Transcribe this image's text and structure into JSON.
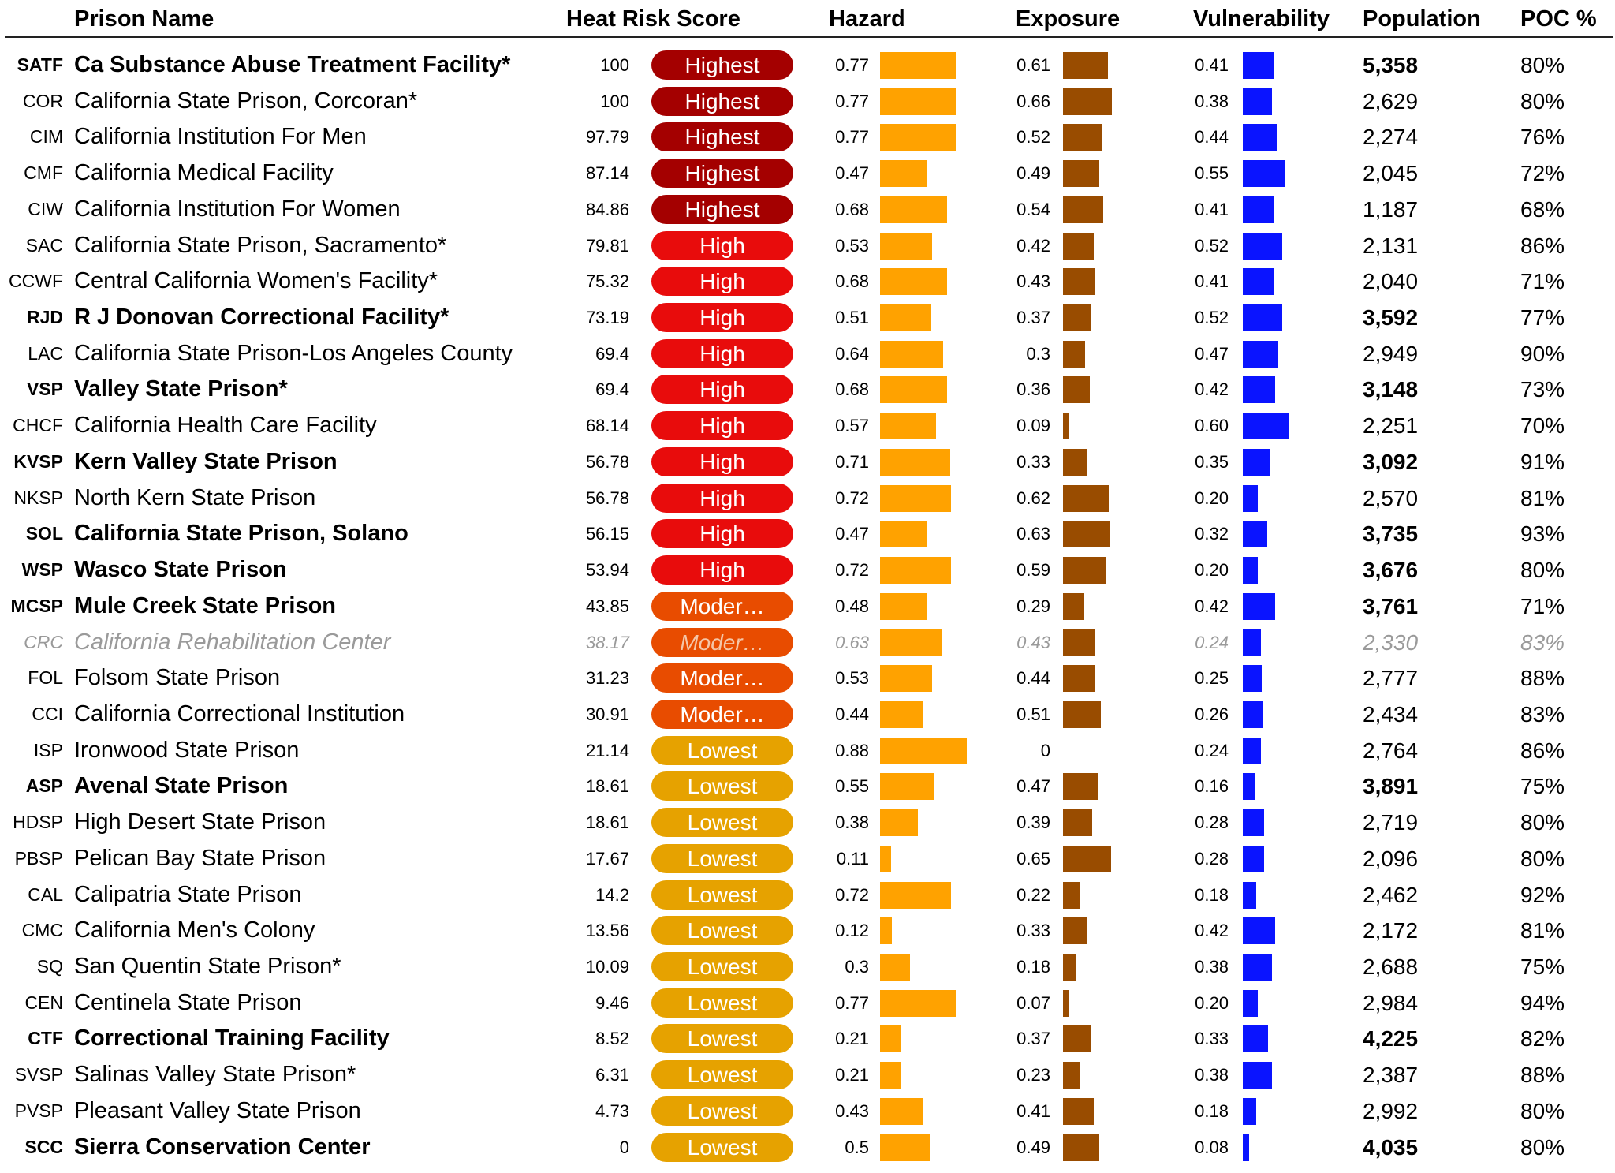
{
  "headers": {
    "name": "Prison Name",
    "score": "Heat Risk Score",
    "hazard": "Hazard",
    "exposure": "Exposure",
    "vulnerability": "Vulnerability",
    "population": "Population",
    "poc": "POC %"
  },
  "colors": {
    "highest": "#a40000",
    "high": "#e80c0c",
    "moderate": "#e84c00",
    "lowest": "#e6a200",
    "hazard_bar": "#ffa200",
    "exposure_bar": "#994c00",
    "vulnerability_bar": "#0a14ff"
  },
  "chart_data": {
    "type": "table",
    "columns": [
      "Prison Name",
      "Heat Risk Score",
      "Hazard",
      "Exposure",
      "Vulnerability",
      "Population",
      "POC %"
    ],
    "rows": [
      {
        "code": "SATF",
        "name": "Ca Substance Abuse Treatment Facility*",
        "score": "100",
        "category": "Highest",
        "level": "highest",
        "hazard": 0.77,
        "hazard_label": "0.77",
        "exposure": 0.61,
        "exposure_label": "0.61",
        "vulnerability": 0.41,
        "vulnerability_label": "0.41",
        "population": "5,358",
        "poc": "80%",
        "bold": true,
        "faded": false
      },
      {
        "code": "COR",
        "name": "California State Prison, Corcoran*",
        "score": "100",
        "category": "Highest",
        "level": "highest",
        "hazard": 0.77,
        "hazard_label": "0.77",
        "exposure": 0.66,
        "exposure_label": "0.66",
        "vulnerability": 0.38,
        "vulnerability_label": "0.38",
        "population": "2,629",
        "poc": "80%",
        "bold": false,
        "faded": false
      },
      {
        "code": "CIM",
        "name": "California Institution For Men",
        "score": "97.79",
        "category": "Highest",
        "level": "highest",
        "hazard": 0.77,
        "hazard_label": "0.77",
        "exposure": 0.52,
        "exposure_label": "0.52",
        "vulnerability": 0.44,
        "vulnerability_label": "0.44",
        "population": "2,274",
        "poc": "76%",
        "bold": false,
        "faded": false
      },
      {
        "code": "CMF",
        "name": "California Medical Facility",
        "score": "87.14",
        "category": "Highest",
        "level": "highest",
        "hazard": 0.47,
        "hazard_label": "0.47",
        "exposure": 0.49,
        "exposure_label": "0.49",
        "vulnerability": 0.55,
        "vulnerability_label": "0.55",
        "population": "2,045",
        "poc": "72%",
        "bold": false,
        "faded": false
      },
      {
        "code": "CIW",
        "name": "California Institution For Women",
        "score": "84.86",
        "category": "Highest",
        "level": "highest",
        "hazard": 0.68,
        "hazard_label": "0.68",
        "exposure": 0.54,
        "exposure_label": "0.54",
        "vulnerability": 0.41,
        "vulnerability_label": "0.41",
        "population": "1,187",
        "poc": "68%",
        "bold": false,
        "faded": false
      },
      {
        "code": "SAC",
        "name": "California State Prison, Sacramento*",
        "score": "79.81",
        "category": "High",
        "level": "high",
        "hazard": 0.53,
        "hazard_label": "0.53",
        "exposure": 0.42,
        "exposure_label": "0.42",
        "vulnerability": 0.52,
        "vulnerability_label": "0.52",
        "population": "2,131",
        "poc": "86%",
        "bold": false,
        "faded": false
      },
      {
        "code": "CCWF",
        "name": "Central California Women's Facility*",
        "score": "75.32",
        "category": "High",
        "level": "high",
        "hazard": 0.68,
        "hazard_label": "0.68",
        "exposure": 0.43,
        "exposure_label": "0.43",
        "vulnerability": 0.41,
        "vulnerability_label": "0.41",
        "population": "2,040",
        "poc": "71%",
        "bold": false,
        "faded": false
      },
      {
        "code": "RJD",
        "name": "R J Donovan Correctional Facility*",
        "score": "73.19",
        "category": "High",
        "level": "high",
        "hazard": 0.51,
        "hazard_label": "0.51",
        "exposure": 0.37,
        "exposure_label": "0.37",
        "vulnerability": 0.52,
        "vulnerability_label": "0.52",
        "population": "3,592",
        "poc": "77%",
        "bold": true,
        "faded": false
      },
      {
        "code": "LAC",
        "name": "California State Prison-Los Angeles County",
        "score": "69.4",
        "category": "High",
        "level": "high",
        "hazard": 0.64,
        "hazard_label": "0.64",
        "exposure": 0.3,
        "exposure_label": "0.3",
        "vulnerability": 0.47,
        "vulnerability_label": "0.47",
        "population": "2,949",
        "poc": "90%",
        "bold": false,
        "faded": false
      },
      {
        "code": "VSP",
        "name": "Valley State Prison*",
        "score": "69.4",
        "category": "High",
        "level": "high",
        "hazard": 0.68,
        "hazard_label": "0.68",
        "exposure": 0.36,
        "exposure_label": "0.36",
        "vulnerability": 0.42,
        "vulnerability_label": "0.42",
        "population": "3,148",
        "poc": "73%",
        "bold": true,
        "faded": false
      },
      {
        "code": "CHCF",
        "name": "California Health Care Facility",
        "score": "68.14",
        "category": "High",
        "level": "high",
        "hazard": 0.57,
        "hazard_label": "0.57",
        "exposure": 0.09,
        "exposure_label": "0.09",
        "vulnerability": 0.6,
        "vulnerability_label": "0.60",
        "population": "2,251",
        "poc": "70%",
        "bold": false,
        "faded": false
      },
      {
        "code": "KVSP",
        "name": "Kern Valley State Prison",
        "score": "56.78",
        "category": "High",
        "level": "high",
        "hazard": 0.71,
        "hazard_label": "0.71",
        "exposure": 0.33,
        "exposure_label": "0.33",
        "vulnerability": 0.35,
        "vulnerability_label": "0.35",
        "population": "3,092",
        "poc": "91%",
        "bold": true,
        "faded": false
      },
      {
        "code": "NKSP",
        "name": "North Kern State Prison",
        "score": "56.78",
        "category": "High",
        "level": "high",
        "hazard": 0.72,
        "hazard_label": "0.72",
        "exposure": 0.62,
        "exposure_label": "0.62",
        "vulnerability": 0.2,
        "vulnerability_label": "0.20",
        "population": "2,570",
        "poc": "81%",
        "bold": false,
        "faded": false
      },
      {
        "code": "SOL",
        "name": "California State Prison, Solano",
        "score": "56.15",
        "category": "High",
        "level": "high",
        "hazard": 0.47,
        "hazard_label": "0.47",
        "exposure": 0.63,
        "exposure_label": "0.63",
        "vulnerability": 0.32,
        "vulnerability_label": "0.32",
        "population": "3,735",
        "poc": "93%",
        "bold": true,
        "faded": false
      },
      {
        "code": "WSP",
        "name": "Wasco State Prison",
        "score": "53.94",
        "category": "High",
        "level": "high",
        "hazard": 0.72,
        "hazard_label": "0.72",
        "exposure": 0.59,
        "exposure_label": "0.59",
        "vulnerability": 0.2,
        "vulnerability_label": "0.20",
        "population": "3,676",
        "poc": "80%",
        "bold": true,
        "faded": false
      },
      {
        "code": "MCSP",
        "name": "Mule Creek State Prison",
        "score": "43.85",
        "category": "Moder…",
        "level": "moderate",
        "hazard": 0.48,
        "hazard_label": "0.48",
        "exposure": 0.29,
        "exposure_label": "0.29",
        "vulnerability": 0.42,
        "vulnerability_label": "0.42",
        "population": "3,761",
        "poc": "71%",
        "bold": true,
        "faded": false
      },
      {
        "code": "CRC",
        "name": "California Rehabilitation Center",
        "score": "38.17",
        "category": "Moder…",
        "level": "moderate",
        "hazard": 0.63,
        "hazard_label": "0.63",
        "exposure": 0.43,
        "exposure_label": "0.43",
        "vulnerability": 0.24,
        "vulnerability_label": "0.24",
        "population": "2,330",
        "poc": "83%",
        "bold": false,
        "faded": true
      },
      {
        "code": "FOL",
        "name": "Folsom State Prison",
        "score": "31.23",
        "category": "Moder…",
        "level": "moderate",
        "hazard": 0.53,
        "hazard_label": "0.53",
        "exposure": 0.44,
        "exposure_label": "0.44",
        "vulnerability": 0.25,
        "vulnerability_label": "0.25",
        "population": "2,777",
        "poc": "88%",
        "bold": false,
        "faded": false
      },
      {
        "code": "CCI",
        "name": "California Correctional Institution",
        "score": "30.91",
        "category": "Moder…",
        "level": "moderate",
        "hazard": 0.44,
        "hazard_label": "0.44",
        "exposure": 0.51,
        "exposure_label": "0.51",
        "vulnerability": 0.26,
        "vulnerability_label": "0.26",
        "population": "2,434",
        "poc": "83%",
        "bold": false,
        "faded": false
      },
      {
        "code": "ISP",
        "name": "Ironwood State Prison",
        "score": "21.14",
        "category": "Lowest",
        "level": "lowest",
        "hazard": 0.88,
        "hazard_label": "0.88",
        "exposure": 0,
        "exposure_label": "0",
        "vulnerability": 0.24,
        "vulnerability_label": "0.24",
        "population": "2,764",
        "poc": "86%",
        "bold": false,
        "faded": false
      },
      {
        "code": "ASP",
        "name": "Avenal State Prison",
        "score": "18.61",
        "category": "Lowest",
        "level": "lowest",
        "hazard": 0.55,
        "hazard_label": "0.55",
        "exposure": 0.47,
        "exposure_label": "0.47",
        "vulnerability": 0.16,
        "vulnerability_label": "0.16",
        "population": "3,891",
        "poc": "75%",
        "bold": true,
        "faded": false
      },
      {
        "code": "HDSP",
        "name": "High Desert State Prison",
        "score": "18.61",
        "category": "Lowest",
        "level": "lowest",
        "hazard": 0.38,
        "hazard_label": "0.38",
        "exposure": 0.39,
        "exposure_label": "0.39",
        "vulnerability": 0.28,
        "vulnerability_label": "0.28",
        "population": "2,719",
        "poc": "80%",
        "bold": false,
        "faded": false
      },
      {
        "code": "PBSP",
        "name": "Pelican Bay State Prison",
        "score": "17.67",
        "category": "Lowest",
        "level": "lowest",
        "hazard": 0.11,
        "hazard_label": "0.11",
        "exposure": 0.65,
        "exposure_label": "0.65",
        "vulnerability": 0.28,
        "vulnerability_label": "0.28",
        "population": "2,096",
        "poc": "80%",
        "bold": false,
        "faded": false
      },
      {
        "code": "CAL",
        "name": "Calipatria State Prison",
        "score": "14.2",
        "category": "Lowest",
        "level": "lowest",
        "hazard": 0.72,
        "hazard_label": "0.72",
        "exposure": 0.22,
        "exposure_label": "0.22",
        "vulnerability": 0.18,
        "vulnerability_label": "0.18",
        "population": "2,462",
        "poc": "92%",
        "bold": false,
        "faded": false
      },
      {
        "code": "CMC",
        "name": "California Men's Colony",
        "score": "13.56",
        "category": "Lowest",
        "level": "lowest",
        "hazard": 0.12,
        "hazard_label": "0.12",
        "exposure": 0.33,
        "exposure_label": "0.33",
        "vulnerability": 0.42,
        "vulnerability_label": "0.42",
        "population": "2,172",
        "poc": "81%",
        "bold": false,
        "faded": false
      },
      {
        "code": "SQ",
        "name": "San Quentin State Prison*",
        "score": "10.09",
        "category": "Lowest",
        "level": "lowest",
        "hazard": 0.3,
        "hazard_label": "0.3",
        "exposure": 0.18,
        "exposure_label": "0.18",
        "vulnerability": 0.38,
        "vulnerability_label": "0.38",
        "population": "2,688",
        "poc": "75%",
        "bold": false,
        "faded": false
      },
      {
        "code": "CEN",
        "name": "Centinela State Prison",
        "score": "9.46",
        "category": "Lowest",
        "level": "lowest",
        "hazard": 0.77,
        "hazard_label": "0.77",
        "exposure": 0.07,
        "exposure_label": "0.07",
        "vulnerability": 0.2,
        "vulnerability_label": "0.20",
        "population": "2,984",
        "poc": "94%",
        "bold": false,
        "faded": false
      },
      {
        "code": "CTF",
        "name": "Correctional Training Facility",
        "score": "8.52",
        "category": "Lowest",
        "level": "lowest",
        "hazard": 0.21,
        "hazard_label": "0.21",
        "exposure": 0.37,
        "exposure_label": "0.37",
        "vulnerability": 0.33,
        "vulnerability_label": "0.33",
        "population": "4,225",
        "poc": "82%",
        "bold": true,
        "faded": false
      },
      {
        "code": "SVSP",
        "name": "Salinas Valley State Prison*",
        "score": "6.31",
        "category": "Lowest",
        "level": "lowest",
        "hazard": 0.21,
        "hazard_label": "0.21",
        "exposure": 0.23,
        "exposure_label": "0.23",
        "vulnerability": 0.38,
        "vulnerability_label": "0.38",
        "population": "2,387",
        "poc": "88%",
        "bold": false,
        "faded": false
      },
      {
        "code": "PVSP",
        "name": "Pleasant Valley State Prison",
        "score": "4.73",
        "category": "Lowest",
        "level": "lowest",
        "hazard": 0.43,
        "hazard_label": "0.43",
        "exposure": 0.41,
        "exposure_label": "0.41",
        "vulnerability": 0.18,
        "vulnerability_label": "0.18",
        "population": "2,992",
        "poc": "80%",
        "bold": false,
        "faded": false
      },
      {
        "code": "SCC",
        "name": "Sierra Conservation Center",
        "score": "0",
        "category": "Lowest",
        "level": "lowest",
        "hazard": 0.5,
        "hazard_label": "0.5",
        "exposure": 0.49,
        "exposure_label": "0.49",
        "vulnerability": 0.08,
        "vulnerability_label": "0.08",
        "population": "4,035",
        "poc": "80%",
        "bold": true,
        "faded": false
      }
    ]
  }
}
